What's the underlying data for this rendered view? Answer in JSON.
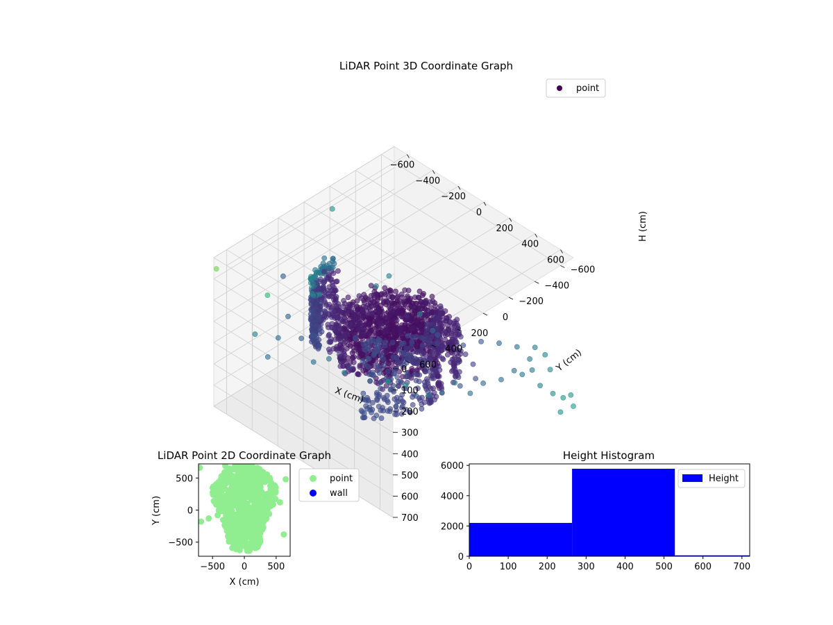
{
  "chart_data": [
    {
      "id": "scatter3d",
      "type": "scatter",
      "title": "LiDAR Point 3D Coordinate Graph",
      "xlabel": "X (cm)",
      "ylabel": "Y (cm)",
      "zlabel": "H (cm)",
      "xlim": [
        -700,
        700
      ],
      "ylim": [
        -700,
        700
      ],
      "zlim": [
        0,
        700
      ],
      "z_inverted": true,
      "colormap": "viridis",
      "x_ticks": [
        "−600",
        "−400",
        "−200",
        "0",
        "200",
        "400",
        "600"
      ],
      "y_ticks": [
        "−600",
        "−400",
        "−200",
        "0",
        "200",
        "400",
        "600"
      ],
      "z_ticks": [
        "0",
        "100",
        "200",
        "300",
        "400",
        "500",
        "600",
        "700"
      ],
      "grid": true,
      "legend": {
        "placement": "top-right",
        "entries": [
          {
            "label": "point",
            "color": "#440154"
          }
        ]
      },
      "series": [
        {
          "name": "point",
          "structure": {
            "center_blob": {
              "cx": 0,
              "cy": 50,
              "rx": 290,
              "ry": 300,
              "h_min": 250,
              "h_max": 450
            },
            "arcs": [
              {
                "cx": -50,
                "cy": 250,
                "r": 230,
                "from_deg": 100,
                "to_deg": 200,
                "h": [
                  30,
                  300
                ]
              },
              {
                "cx": 50,
                "cy": 80,
                "r": 370,
                "from_deg": 160,
                "to_deg": 330,
                "h": [
                  300,
                  500
                ]
              },
              {
                "cx": 60,
                "cy": 180,
                "r": 340,
                "from_deg": -40,
                "to_deg": 60,
                "h": [
                  120,
                  500
                ]
              }
            ]
          },
          "outliers": [
            [
              -640,
              -500,
              560
            ],
            [
              -600,
              -560,
              520
            ],
            [
              -560,
              -80,
              10
            ],
            [
              -320,
              220,
              40
            ],
            [
              -700,
              680,
              60
            ],
            [
              -420,
              440,
              80
            ],
            [
              -280,
              700,
              20
            ],
            [
              -200,
              620,
              120
            ],
            [
              -60,
              560,
              180
            ],
            [
              80,
              700,
              200
            ],
            [
              200,
              700,
              140
            ],
            [
              320,
              700,
              160
            ],
            [
              420,
              600,
              200
            ],
            [
              520,
              560,
              180
            ],
            [
              600,
              640,
              120
            ],
            [
              640,
              540,
              160
            ],
            [
              660,
              380,
              260
            ],
            [
              640,
              260,
              300
            ],
            [
              680,
              200,
              260
            ],
            [
              700,
              100,
              340
            ],
            [
              660,
              -40,
              360
            ],
            [
              680,
              -160,
              380
            ],
            [
              620,
              -320,
              420
            ],
            [
              660,
              -420,
              440
            ],
            [
              700,
              -520,
              460
            ],
            [
              560,
              -620,
              480
            ],
            [
              500,
              -560,
              500
            ],
            [
              420,
              -680,
              520
            ],
            [
              320,
              -640,
              540
            ],
            [
              200,
              -620,
              560
            ],
            [
              120,
              -560,
              560
            ],
            [
              20,
              -520,
              600
            ],
            [
              -120,
              -460,
              620
            ],
            [
              -200,
              -540,
              640
            ],
            [
              -300,
              -600,
              680
            ],
            [
              -420,
              -300,
              660
            ],
            [
              -500,
              -200,
              640
            ],
            [
              -540,
              40,
              600
            ],
            [
              -600,
              120,
              560
            ],
            [
              -640,
              260,
              520
            ],
            [
              -700,
              380,
              480
            ],
            [
              -560,
              420,
              520
            ],
            [
              -460,
              140,
              440
            ],
            [
              -380,
              60,
              400
            ],
            [
              -300,
              -120,
              420
            ],
            [
              -200,
              -300,
              460
            ],
            [
              -80,
              -380,
              480
            ],
            [
              60,
              -340,
              460
            ],
            [
              180,
              -300,
              440
            ],
            [
              300,
              -260,
              440
            ],
            [
              420,
              -200,
              420
            ],
            [
              520,
              -120,
              420
            ],
            [
              560,
              40,
              380
            ],
            [
              560,
              180,
              360
            ],
            [
              480,
              300,
              360
            ],
            [
              380,
              380,
              340
            ],
            [
              260,
              440,
              320
            ],
            [
              120,
              460,
              300
            ],
            [
              0,
              420,
              300
            ],
            [
              -120,
              380,
              300
            ],
            [
              700,
              -700,
              700
            ],
            [
              620,
              -700,
              690
            ],
            [
              540,
              -700,
              700
            ],
            [
              440,
              -700,
              700
            ],
            [
              300,
              -700,
              700
            ],
            [
              700,
              -600,
              690
            ],
            [
              700,
              -680,
              640
            ],
            [
              -480,
              -680,
              700
            ]
          ]
        }
      ]
    },
    {
      "id": "scatter2d",
      "type": "scatter",
      "title": "LiDAR Point 2D Coordinate Graph",
      "xlabel": "X (cm)",
      "ylabel": "Y (cm)",
      "xlim": [
        -720,
        720
      ],
      "ylim": [
        -720,
        720
      ],
      "x_ticks": [
        "−500",
        "0",
        "500"
      ],
      "y_ticks": [
        "−500",
        "0",
        "500"
      ],
      "grid": false,
      "legend": {
        "placement": "outside-right",
        "entries": [
          {
            "label": "point",
            "color": "#90ee90"
          },
          {
            "label": "wall",
            "color": "#0000ff"
          }
        ]
      },
      "series": [
        {
          "name": "point",
          "color": "#90ee90",
          "region": {
            "cx": 0,
            "cy": 50,
            "rx": 560,
            "ry": 700
          }
        },
        {
          "name": "wall",
          "color": "#0000ff",
          "points": []
        }
      ]
    },
    {
      "id": "histogram",
      "type": "bar",
      "title": "Height Histogram",
      "xlim": [
        0,
        720
      ],
      "ylim": [
        0,
        6100
      ],
      "x_ticks": [
        "0",
        "100",
        "200",
        "300",
        "400",
        "500",
        "600",
        "700"
      ],
      "y_ticks": [
        "0",
        "2000",
        "4000",
        "6000"
      ],
      "color": "#0000ff",
      "legend": {
        "placement": "top-right",
        "entries": [
          {
            "label": "Height",
            "color": "#0000ff"
          }
        ]
      },
      "bins": [
        {
          "x0": 0,
          "x1": 264,
          "value": 2200
        },
        {
          "x0": 264,
          "x1": 528,
          "value": 5780
        },
        {
          "x0": 528,
          "x1": 720,
          "value": 60
        }
      ]
    }
  ]
}
